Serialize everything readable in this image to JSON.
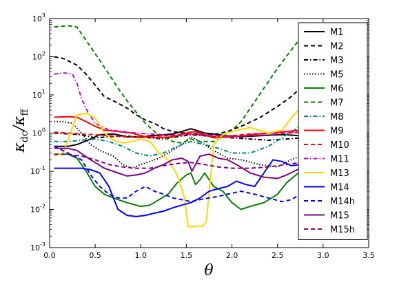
{
  "chart_data": {
    "type": "line",
    "xlabel": "θ",
    "ylabel_parts": [
      "κ",
      "dc",
      "/κ",
      "ff"
    ],
    "xlim": [
      0.0,
      3.5
    ],
    "ylim": [
      0.001,
      1000
    ],
    "yscale": "log",
    "x_ticks": [
      "0.0",
      "0.5",
      "1.0",
      "1.5",
      "2.0",
      "2.5",
      "3.0",
      "3.5"
    ],
    "y_ticks": [
      {
        "base": "10",
        "exp": "3"
      },
      {
        "base": "10",
        "exp": "2"
      },
      {
        "base": "10",
        "exp": "1"
      },
      {
        "base": "10",
        "exp": "0"
      },
      {
        "base": "10",
        "exp": "-1"
      },
      {
        "base": "10",
        "exp": "-2"
      },
      {
        "base": "10",
        "exp": "-3"
      }
    ],
    "legend_position": "right",
    "series": [
      {
        "name": "M1",
        "color": "#000000",
        "dash": "solid",
        "x": [
          0.05,
          0.2,
          0.3,
          0.45,
          0.55,
          0.7,
          0.85,
          1.0,
          1.1,
          1.25,
          1.35,
          1.45,
          1.55,
          1.6,
          1.7,
          1.8,
          1.95,
          2.1,
          2.3,
          2.5,
          2.6,
          2.75
        ],
        "y": [
          0.45,
          0.45,
          0.5,
          0.7,
          0.9,
          0.95,
          0.8,
          0.78,
          0.85,
          0.9,
          0.95,
          1.1,
          1.3,
          1.2,
          1.0,
          0.95,
          0.85,
          0.8,
          0.85,
          0.9,
          0.9,
          0.85
        ]
      },
      {
        "name": "M2",
        "color": "#000000",
        "dash": "dashed",
        "x": [
          0.05,
          0.15,
          0.3,
          0.4,
          0.5,
          0.6,
          0.7,
          0.85,
          0.95,
          1.05,
          1.15,
          1.25,
          1.35,
          1.45,
          1.55,
          1.65,
          1.8,
          1.95,
          2.1,
          2.3,
          2.5,
          2.65,
          2.75
        ],
        "y": [
          100,
          90,
          60,
          35,
          18,
          9,
          7,
          4.5,
          3,
          2.2,
          1.8,
          1.3,
          1.1,
          1.0,
          1.05,
          0.9,
          0.9,
          1.1,
          1.5,
          2.5,
          5,
          9,
          15
        ]
      },
      {
        "name": "M3",
        "color": "#000000",
        "dash": "dashdot",
        "x": [
          0.05,
          0.2,
          0.35,
          0.5,
          0.65,
          0.8,
          0.95,
          1.1,
          1.25,
          1.4,
          1.55,
          1.7,
          1.85,
          2.0,
          2.2,
          2.4,
          2.6,
          2.75
        ],
        "y": [
          1.0,
          0.95,
          0.9,
          0.75,
          0.8,
          0.85,
          0.8,
          0.75,
          0.7,
          0.8,
          0.9,
          0.85,
          0.8,
          0.75,
          0.7,
          0.65,
          0.7,
          0.75
        ]
      },
      {
        "name": "M5",
        "color": "#000000",
        "dash": "dotted",
        "x": [
          0.05,
          0.15,
          0.25,
          0.35,
          0.45,
          0.55,
          0.7,
          0.8,
          0.9,
          1.0,
          1.1,
          1.2,
          1.3,
          1.45,
          1.55,
          1.65,
          1.8,
          1.95,
          2.1,
          2.3,
          2.5,
          2.65,
          2.75
        ],
        "y": [
          2,
          2,
          1.8,
          1.0,
          0.5,
          0.35,
          0.25,
          0.15,
          0.12,
          0.15,
          0.18,
          0.22,
          0.3,
          0.5,
          0.8,
          0.6,
          0.35,
          0.22,
          0.2,
          0.15,
          0.13,
          0.2,
          0.25
        ]
      },
      {
        "name": "M6",
        "color": "#008000",
        "dash": "solid",
        "x": [
          0.05,
          0.2,
          0.3,
          0.4,
          0.5,
          0.6,
          0.7,
          0.85,
          1.0,
          1.1,
          1.2,
          1.3,
          1.4,
          1.5,
          1.55,
          1.6,
          1.65,
          1.7,
          1.8,
          1.9,
          2.0,
          2.1,
          2.2,
          2.35,
          2.5,
          2.6,
          2.75
        ],
        "y": [
          0.28,
          0.28,
          0.22,
          0.1,
          0.04,
          0.025,
          0.02,
          0.015,
          0.012,
          0.013,
          0.018,
          0.025,
          0.05,
          0.08,
          0.09,
          0.045,
          0.06,
          0.09,
          0.04,
          0.03,
          0.015,
          0.01,
          0.012,
          0.015,
          0.025,
          0.05,
          0.1
        ]
      },
      {
        "name": "M7",
        "color": "#008000",
        "dash": "dashed",
        "x": [
          0.05,
          0.2,
          0.3,
          0.35,
          0.45,
          0.55,
          0.65,
          0.75,
          0.85,
          0.95,
          1.05,
          1.15,
          1.25,
          1.35,
          1.45,
          1.55,
          1.65,
          1.8,
          1.95,
          2.1,
          2.3,
          2.5,
          2.65,
          2.75
        ],
        "y": [
          600,
          650,
          600,
          400,
          180,
          80,
          35,
          15,
          7,
          3.5,
          1.8,
          1.1,
          0.8,
          0.6,
          0.55,
          0.7,
          0.6,
          0.6,
          0.9,
          2,
          10,
          50,
          150,
          300
        ]
      },
      {
        "name": "M8",
        "color": "#008080",
        "dash": "dashdot",
        "x": [
          0.05,
          0.2,
          0.35,
          0.5,
          0.65,
          0.8,
          0.95,
          1.1,
          1.25,
          1.4,
          1.55,
          1.7,
          1.85,
          2.0,
          2.2,
          2.4,
          2.6,
          2.75
        ],
        "y": [
          0.6,
          0.6,
          0.65,
          0.7,
          0.6,
          0.45,
          0.3,
          0.25,
          0.3,
          0.45,
          0.6,
          0.5,
          0.4,
          0.3,
          0.3,
          0.45,
          0.9,
          1.5
        ]
      },
      {
        "name": "M9",
        "color": "#ff0000",
        "dash": "solid",
        "x": [
          0.05,
          0.2,
          0.3,
          0.4,
          0.5,
          0.6,
          0.75,
          0.9,
          1.05,
          1.2,
          1.35,
          1.5,
          1.6,
          1.7,
          1.8,
          2.0,
          2.2,
          2.4,
          2.6,
          2.75
        ],
        "y": [
          2.6,
          2.7,
          2.6,
          2.0,
          1.5,
          1.2,
          1.1,
          1.0,
          0.8,
          0.75,
          0.8,
          1.0,
          1.1,
          0.9,
          0.75,
          0.8,
          0.9,
          1.0,
          1.1,
          1.2
        ]
      },
      {
        "name": "M10",
        "color": "#ff0000",
        "dash": "dashed",
        "x": [
          0.05,
          0.2,
          0.35,
          0.5,
          0.65,
          0.8,
          0.95,
          1.1,
          1.25,
          1.4,
          1.55,
          1.7,
          1.85,
          2.0,
          2.2,
          2.4,
          2.6,
          2.75
        ],
        "y": [
          1.05,
          1.0,
          0.95,
          0.9,
          0.85,
          0.8,
          0.8,
          0.8,
          0.85,
          0.9,
          0.95,
          0.85,
          0.8,
          0.85,
          0.95,
          1.0,
          1.0,
          1.05
        ]
      },
      {
        "name": "M11",
        "color": "#cc00cc",
        "dash": "dashdot",
        "x": [
          0.05,
          0.15,
          0.25,
          0.3,
          0.35,
          0.42,
          0.5,
          0.65,
          0.8,
          0.95,
          1.1,
          1.25,
          1.4,
          1.55,
          1.7,
          1.85,
          2.0,
          2.2,
          2.4,
          2.6,
          2.75
        ],
        "y": [
          35,
          38,
          35,
          20,
          8,
          3.5,
          1.8,
          1.2,
          1.1,
          1.0,
          0.95,
          0.9,
          0.85,
          0.95,
          0.9,
          0.85,
          0.8,
          0.85,
          0.9,
          1.0,
          1.1
        ]
      },
      {
        "name": "M13",
        "color": "#ffd700",
        "dash": "solid",
        "x": [
          0.05,
          0.15,
          0.3,
          0.4,
          0.5,
          0.6,
          0.7,
          0.8,
          0.9,
          1.0,
          1.1,
          1.2,
          1.3,
          1.4,
          1.48,
          1.52,
          1.58,
          1.63,
          1.68,
          1.72,
          1.8,
          1.9,
          2.0,
          2.2,
          2.4,
          2.55,
          2.65,
          2.75
        ],
        "y": [
          0.25,
          0.3,
          3.0,
          3.3,
          2.5,
          1.0,
          0.65,
          0.55,
          0.6,
          0.7,
          0.6,
          0.3,
          0.2,
          0.08,
          0.02,
          0.0035,
          0.0035,
          0.0037,
          0.0036,
          0.005,
          0.5,
          0.9,
          1.1,
          1.4,
          1.0,
          1.2,
          2.5,
          4.5
        ]
      },
      {
        "name": "M14",
        "color": "#0000ff",
        "dash": "solid",
        "x": [
          0.05,
          0.2,
          0.35,
          0.45,
          0.55,
          0.65,
          0.75,
          0.85,
          0.95,
          1.05,
          1.15,
          1.25,
          1.35,
          1.45,
          1.55,
          1.65,
          1.75,
          1.85,
          1.95,
          2.05,
          2.15,
          2.25,
          2.35,
          2.45,
          2.55,
          2.65,
          2.75
        ],
        "y": [
          0.12,
          0.12,
          0.12,
          0.11,
          0.09,
          0.04,
          0.01,
          0.007,
          0.0065,
          0.007,
          0.008,
          0.009,
          0.011,
          0.013,
          0.015,
          0.02,
          0.03,
          0.035,
          0.04,
          0.055,
          0.045,
          0.04,
          0.09,
          0.2,
          0.18,
          0.14,
          0.15
        ]
      },
      {
        "name": "M14h",
        "color": "#0000ff",
        "dash": "dashed",
        "x": [
          0.05,
          0.2,
          0.35,
          0.45,
          0.55,
          0.65,
          0.75,
          0.85,
          0.95,
          1.05,
          1.15,
          1.25,
          1.35,
          1.45,
          1.55,
          1.65,
          1.75,
          1.85,
          1.95,
          2.1,
          2.25,
          2.4,
          2.55,
          2.65,
          2.75
        ],
        "y": [
          0.45,
          0.3,
          0.2,
          0.08,
          0.04,
          0.025,
          0.02,
          0.02,
          0.03,
          0.04,
          0.03,
          0.025,
          0.02,
          0.018,
          0.016,
          0.018,
          0.02,
          0.022,
          0.025,
          0.03,
          0.025,
          0.02,
          0.016,
          0.018,
          0.025
        ]
      },
      {
        "name": "M15",
        "color": "#800080",
        "dash": "solid",
        "x": [
          0.05,
          0.2,
          0.3,
          0.45,
          0.6,
          0.75,
          0.85,
          0.95,
          1.05,
          1.15,
          1.25,
          1.35,
          1.45,
          1.52,
          1.56,
          1.6,
          1.65,
          1.75,
          1.85,
          1.95,
          2.05,
          2.2,
          2.35,
          2.5,
          2.6,
          2.75
        ],
        "y": [
          0.4,
          0.4,
          0.35,
          0.2,
          0.12,
          0.09,
          0.075,
          0.08,
          0.09,
          0.12,
          0.15,
          0.2,
          0.22,
          0.18,
          0.1,
          0.15,
          0.25,
          0.28,
          0.22,
          0.2,
          0.15,
          0.09,
          0.07,
          0.065,
          0.08,
          0.12
        ]
      },
      {
        "name": "M15h",
        "color": "#800080",
        "dash": "dashed",
        "x": [
          0.05,
          0.2,
          0.35,
          0.5,
          0.65,
          0.8,
          0.95,
          1.1,
          1.25,
          1.4,
          1.55,
          1.7,
          1.85,
          2.0,
          2.2,
          2.4,
          2.6,
          2.75
        ],
        "y": [
          0.28,
          0.28,
          0.25,
          0.2,
          0.15,
          0.13,
          0.12,
          0.12,
          0.14,
          0.16,
          0.17,
          0.15,
          0.13,
          0.12,
          0.12,
          0.13,
          0.15,
          0.17
        ]
      }
    ]
  }
}
